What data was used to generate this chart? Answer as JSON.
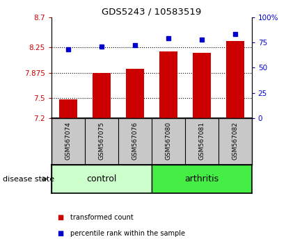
{
  "title": "GDS5243 / 10583519",
  "categories": [
    "GSM567074",
    "GSM567075",
    "GSM567076",
    "GSM567080",
    "GSM567081",
    "GSM567082"
  ],
  "bar_values": [
    7.48,
    7.87,
    7.93,
    8.19,
    8.17,
    8.35
  ],
  "dot_values": [
    68,
    71,
    72,
    79,
    78,
    83
  ],
  "ylim_left": [
    7.2,
    8.7
  ],
  "ylim_right": [
    0,
    100
  ],
  "yticks_left": [
    7.2,
    7.5,
    7.875,
    8.25,
    8.7
  ],
  "ytick_labels_left": [
    "7.2",
    "7.5",
    "7.875",
    "8.25",
    "8.7"
  ],
  "yticks_right": [
    0,
    25,
    50,
    75,
    100
  ],
  "ytick_labels_right": [
    "0",
    "25",
    "50",
    "75",
    "100%"
  ],
  "hlines": [
    7.5,
    7.875,
    8.25
  ],
  "bar_color": "#cc0000",
  "dot_color": "#0000cc",
  "control_color": "#ccffcc",
  "arthritis_color": "#44ee44",
  "group_label_control": "control",
  "group_label_arthritis": "arthritis",
  "disease_state_label": "disease state",
  "legend_bar_label": "transformed count",
  "legend_dot_label": "percentile rank within the sample",
  "tick_color_left": "#cc0000",
  "tick_color_right": "#0000cc",
  "bar_width": 0.55,
  "xtick_bg_color": "#c8c8c8",
  "spine_color": "#000000"
}
